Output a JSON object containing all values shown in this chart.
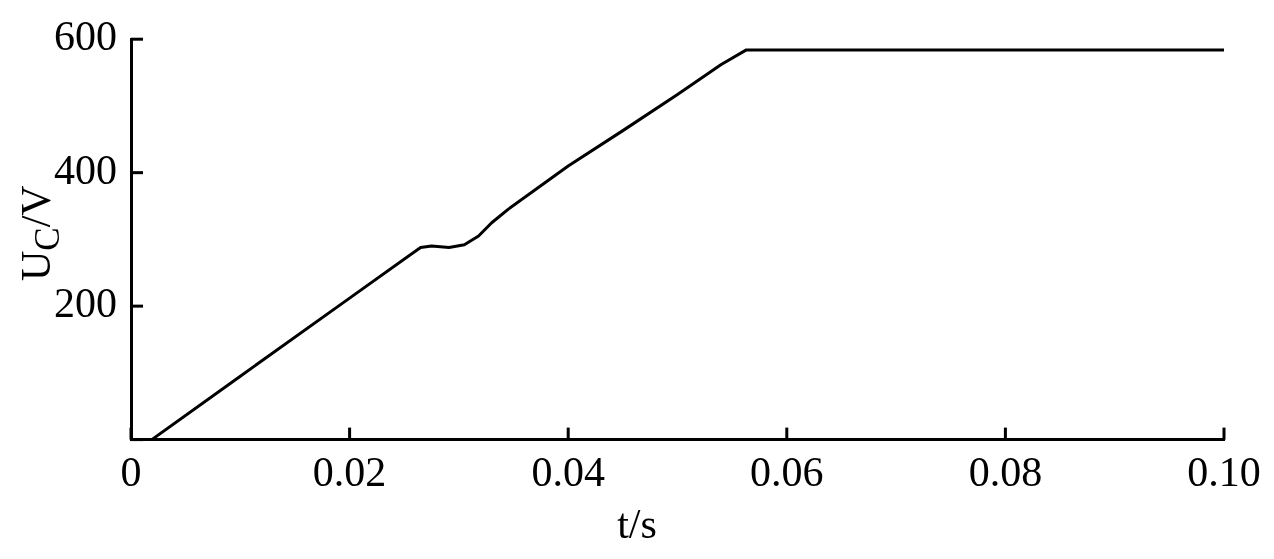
{
  "chart_data": {
    "type": "line",
    "xlabel": "t/s",
    "ylabel": "U$_{C}$/V",
    "marker": "none",
    "line_style": "solid",
    "grid": false,
    "legend": false,
    "series": [
      {
        "color": "#000000",
        "x": [
          0,
          0.0019,
          0.01,
          0.02,
          0.0265,
          0.0275,
          0.0291,
          0.0305,
          0.0318,
          0.033,
          0.0345,
          0.04,
          0.045,
          0.05,
          0.054,
          0.0563,
          0.057,
          0.07,
          0.08,
          0.09,
          0.1
        ],
        "values": [
          0,
          0,
          95,
          212,
          288,
          290,
          288,
          292,
          305,
          325,
          345,
          410,
          463,
          517,
          562,
          584,
          584,
          584,
          584,
          584,
          584
        ]
      }
    ],
    "xlim": [
      0,
      0.1
    ],
    "xticks": [
      0,
      0.02,
      0.04,
      0.06,
      0.08,
      {
        "value": 0.1,
        "label": "0.10"
      }
    ],
    "ylim": [
      0,
      600
    ],
    "yticks": [
      {
        "value": 0,
        "label": null
      },
      200,
      400,
      600
    ]
  }
}
